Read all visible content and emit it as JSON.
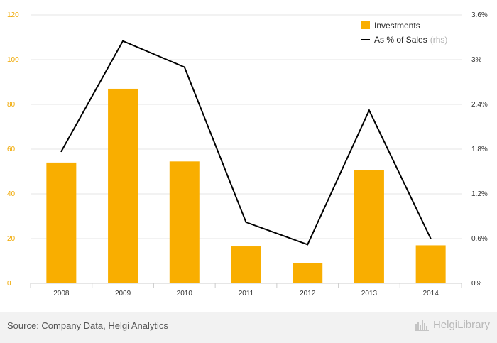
{
  "chart_data": {
    "type": "bar+line",
    "categories": [
      "2008",
      "2009",
      "2010",
      "2011",
      "2012",
      "2013",
      "2014"
    ],
    "series": [
      {
        "name": "Investments",
        "type": "bar",
        "axis": "left",
        "color": "#f9ae00",
        "values": [
          54,
          87,
          54.5,
          16.5,
          9,
          50.5,
          17
        ]
      },
      {
        "name": "As % of Sales",
        "name_suffix": "(rhs)",
        "type": "line",
        "axis": "right",
        "color": "#000000",
        "values": [
          1.77,
          3.25,
          2.9,
          0.82,
          0.52,
          2.32,
          0.6
        ]
      }
    ],
    "left_axis": {
      "ylim": [
        0,
        120
      ],
      "ticks": [
        "0",
        "20",
        "40",
        "60",
        "80",
        "100",
        "120"
      ]
    },
    "right_axis": {
      "ylim": [
        0,
        3.6
      ],
      "ticks": [
        "0%",
        "0.6%",
        "1.2%",
        "1.8%",
        "2.4%",
        "3%",
        "3.6%"
      ]
    },
    "grid": true,
    "legend_position": "top-right"
  },
  "footer": {
    "source": "Source: Company Data, Helgi Analytics",
    "brand": "HelgiLibrary"
  }
}
